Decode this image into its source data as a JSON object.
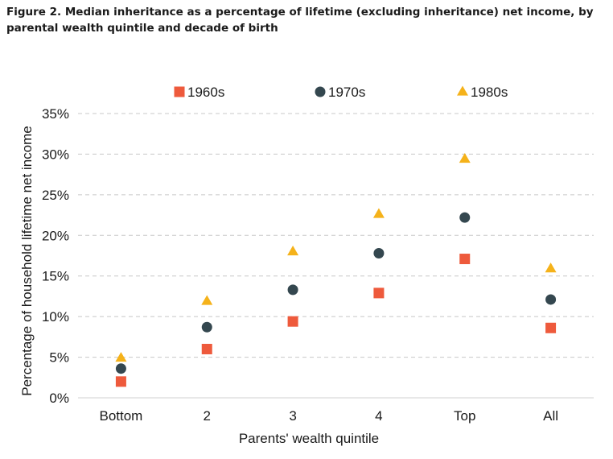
{
  "figure_title": "Figure 2. Median inheritance as a percentage of lifetime (excluding inheritance) net income, by parental wealth quintile and decade of birth",
  "chart_data": {
    "type": "scatter",
    "title": "",
    "xlabel": "Parents' wealth quintile",
    "ylabel": "Percentage of household lifetime net income",
    "categories": [
      "Bottom",
      "2",
      "3",
      "4",
      "Top",
      "All"
    ],
    "yticks": [
      "0%",
      "5%",
      "10%",
      "15%",
      "20%",
      "25%",
      "30%",
      "35%"
    ],
    "ylim": [
      0,
      35
    ],
    "grid": "horizontal dashed",
    "legend_position": "top",
    "series": [
      {
        "name": "1960s",
        "marker": "square",
        "color": "#ee5a3c",
        "values": [
          2.0,
          6.0,
          9.4,
          12.9,
          17.1,
          8.6
        ]
      },
      {
        "name": "1970s",
        "marker": "circle",
        "color": "#34474f",
        "values": [
          3.6,
          8.7,
          13.3,
          17.8,
          22.2,
          12.1
        ]
      },
      {
        "name": "1980s",
        "marker": "triangle",
        "color": "#f5b21a",
        "values": [
          4.9,
          11.9,
          18.0,
          22.6,
          29.4,
          15.9
        ]
      }
    ]
  }
}
